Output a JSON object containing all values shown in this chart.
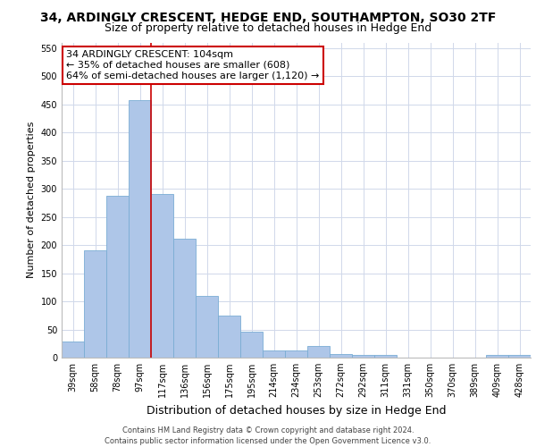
{
  "title": "34, ARDINGLY CRESCENT, HEDGE END, SOUTHAMPTON, SO30 2TF",
  "subtitle": "Size of property relative to detached houses in Hedge End",
  "xlabel": "Distribution of detached houses by size in Hedge End",
  "ylabel": "Number of detached properties",
  "categories": [
    "39sqm",
    "58sqm",
    "78sqm",
    "97sqm",
    "117sqm",
    "136sqm",
    "156sqm",
    "175sqm",
    "195sqm",
    "214sqm",
    "234sqm",
    "253sqm",
    "272sqm",
    "292sqm",
    "311sqm",
    "331sqm",
    "350sqm",
    "370sqm",
    "389sqm",
    "409sqm",
    "428sqm"
  ],
  "values": [
    28,
    190,
    287,
    458,
    291,
    212,
    110,
    74,
    46,
    12,
    12,
    20,
    7,
    5,
    5,
    0,
    0,
    0,
    0,
    5,
    5
  ],
  "bar_color": "#aec6e8",
  "bar_edge_color": "#7aadd4",
  "grid_color": "#d0d8ea",
  "background_color": "#ffffff",
  "annotation_line1": "34 ARDINGLY CRESCENT: 104sqm",
  "annotation_line2": "← 35% of detached houses are smaller (608)",
  "annotation_line3": "64% of semi-detached houses are larger (1,120) →",
  "vline_color": "#cc0000",
  "vline_x_index": 3.5,
  "ylim": [
    0,
    560
  ],
  "yticks": [
    0,
    50,
    100,
    150,
    200,
    250,
    300,
    350,
    400,
    450,
    500,
    550
  ],
  "footer_line1": "Contains HM Land Registry data © Crown copyright and database right 2024.",
  "footer_line2": "Contains public sector information licensed under the Open Government Licence v3.0.",
  "title_fontsize": 10,
  "subtitle_fontsize": 9,
  "ylabel_fontsize": 8,
  "xlabel_fontsize": 9,
  "tick_fontsize": 7,
  "footer_fontsize": 6,
  "annot_fontsize": 8
}
